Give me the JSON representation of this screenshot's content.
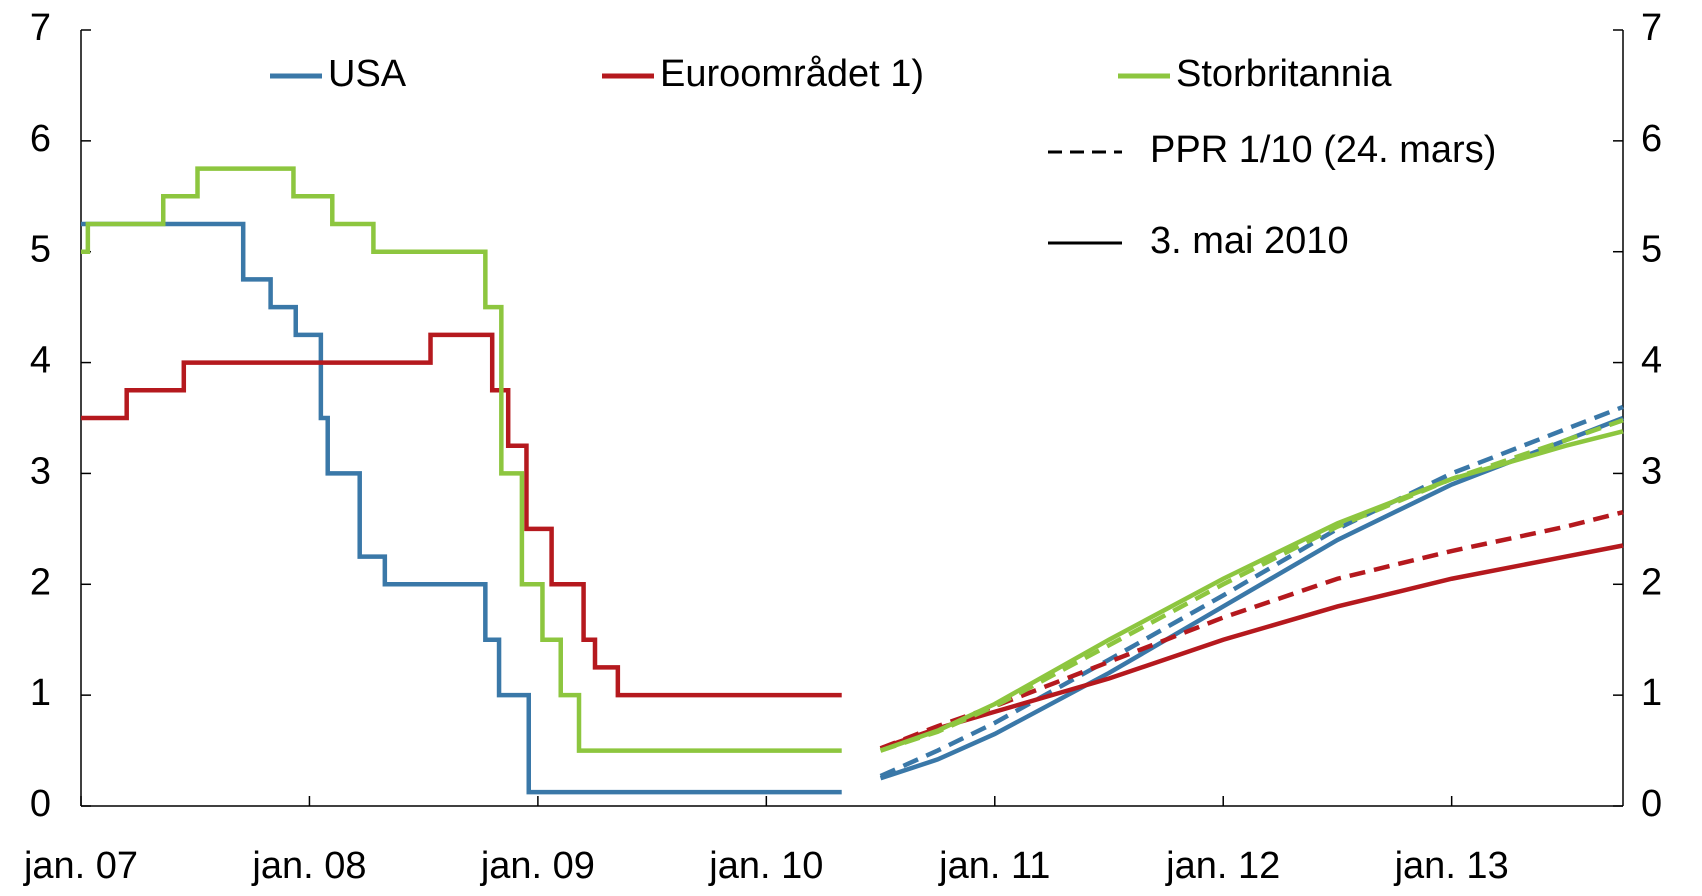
{
  "chart_data": {
    "type": "line",
    "step": true,
    "xlim": [
      2007,
      2013.75
    ],
    "xticks": [
      {
        "value": 2007,
        "label": "jan. 07"
      },
      {
        "value": 2008,
        "label": "jan. 08"
      },
      {
        "value": 2009,
        "label": "jan. 09"
      },
      {
        "value": 2010,
        "label": "jan. 10"
      },
      {
        "value": 2011,
        "label": "jan. 11"
      },
      {
        "value": 2012,
        "label": "jan. 12"
      },
      {
        "value": 2013,
        "label": "jan. 13"
      }
    ],
    "ylim": [
      0,
      7
    ],
    "yticks": [
      0,
      1,
      2,
      3,
      4,
      5,
      6,
      7
    ],
    "styles": [
      {
        "name": "PPR 1/10 (24. mars)",
        "dash": true
      },
      {
        "name": "3. mai 2010",
        "dash": false
      }
    ],
    "series": [
      {
        "name": "USA",
        "color": "#3a78a8",
        "x": [
          2007.0,
          2007.71,
          2007.83,
          2007.94,
          2008.05,
          2008.08,
          2008.22,
          2008.33,
          2008.77,
          2008.83,
          2008.96,
          2010.33
        ],
        "values": [
          5.25,
          4.75,
          4.5,
          4.25,
          3.5,
          3.0,
          2.25,
          2.0,
          1.5,
          1.0,
          0.125,
          0.125
        ],
        "forecasts": [
          {
            "x": [
              2010.5,
              2010.75,
              2011,
              2011.5,
              2012,
              2012.5,
              2013,
              2013.5,
              2013.75
            ],
            "values": [
              0.27,
              0.5,
              0.75,
              1.32,
              1.9,
              2.5,
              3.0,
              3.4,
              3.6
            ]
          },
          {
            "x": [
              2010.5,
              2010.75,
              2011,
              2011.5,
              2012,
              2012.5,
              2013,
              2013.5,
              2013.75
            ],
            "values": [
              0.25,
              0.42,
              0.65,
              1.2,
              1.8,
              2.4,
              2.9,
              3.3,
              3.5
            ]
          }
        ]
      },
      {
        "name": "Euroområdet 1)",
        "color": "#b5191e",
        "x": [
          2007.0,
          2007.2,
          2007.45,
          2008.53,
          2008.8,
          2008.87,
          2008.95,
          2009.06,
          2009.2,
          2009.25,
          2009.35,
          2010.33
        ],
        "values": [
          3.5,
          3.75,
          4.0,
          4.25,
          3.75,
          3.25,
          2.5,
          2.0,
          1.5,
          1.25,
          1.0,
          1.0
        ],
        "forecasts": [
          {
            "x": [
              2010.5,
              2010.75,
              2011,
              2011.5,
              2012,
              2012.5,
              2013,
              2013.5,
              2013.75
            ],
            "values": [
              0.52,
              0.72,
              0.9,
              1.3,
              1.7,
              2.05,
              2.3,
              2.52,
              2.65
            ]
          },
          {
            "x": [
              2010.5,
              2010.75,
              2011,
              2011.5,
              2012,
              2012.5,
              2013,
              2013.5,
              2013.75
            ],
            "values": [
              0.52,
              0.7,
              0.85,
              1.15,
              1.5,
              1.8,
              2.05,
              2.25,
              2.35
            ]
          }
        ]
      },
      {
        "name": "Storbritannia",
        "color": "#8dc63f",
        "x": [
          2007.0,
          2007.03,
          2007.36,
          2007.51,
          2007.93,
          2008.1,
          2008.28,
          2008.77,
          2008.84,
          2008.93,
          2009.02,
          2009.1,
          2009.18,
          2010.33
        ],
        "values": [
          5.0,
          5.25,
          5.5,
          5.75,
          5.5,
          5.25,
          5.0,
          4.5,
          3.0,
          2.0,
          1.5,
          1.0,
          0.5,
          0.5
        ],
        "forecasts": [
          {
            "x": [
              2010.5,
              2010.75,
              2011,
              2011.5,
              2012,
              2012.5,
              2013,
              2013.5,
              2013.75
            ],
            "values": [
              0.5,
              0.67,
              0.9,
              1.45,
              2.0,
              2.52,
              2.95,
              3.3,
              3.48
            ]
          },
          {
            "x": [
              2010.5,
              2010.75,
              2011,
              2011.5,
              2012,
              2012.5,
              2013,
              2013.5,
              2013.75
            ],
            "values": [
              0.5,
              0.68,
              0.92,
              1.5,
              2.05,
              2.55,
              2.95,
              3.25,
              3.38
            ]
          }
        ]
      }
    ]
  }
}
